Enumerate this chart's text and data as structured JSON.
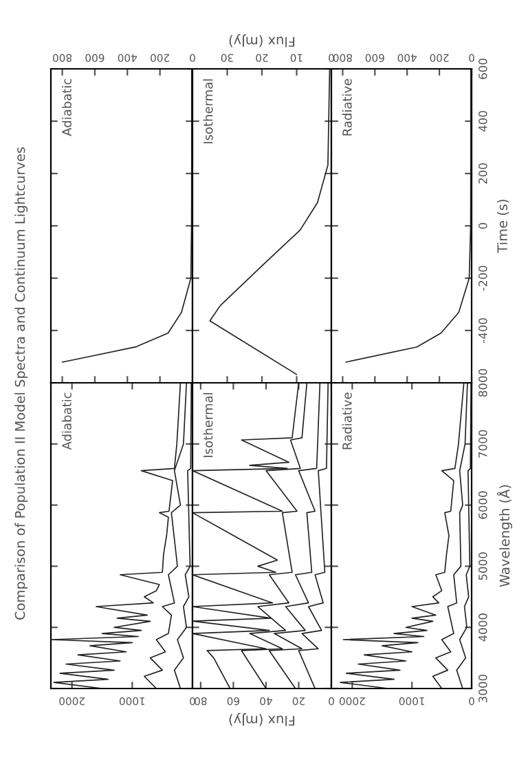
{
  "chart_data": [
    {
      "type": "line",
      "title": "Comparison of Population II Model Spectra and Continuum Lightcurves",
      "annotations": [
        "Adiabatic"
      ],
      "ylim": [
        -600,
        600
      ],
      "yticks": [
        -400,
        -200,
        0,
        200,
        400,
        600
      ],
      "xlim": [
        870,
        0
      ],
      "xticks": [
        0,
        200,
        400,
        600,
        800
      ],
      "tick_labels": "x",
      "grid": false,
      "legend": false,
      "series": [
        {
          "color": "#222222",
          "values": [
            -521,
            -463,
            -410,
            -331,
            -200,
            0,
            300,
            600
          ],
          "x": [
            800,
            350,
            150,
            68,
            10,
            6,
            5,
            5
          ]
        }
      ]
    },
    {
      "type": "line",
      "annotations": [
        "Isothermal"
      ],
      "xlabel": "Flux (mJy)",
      "ylim": [
        -600,
        600
      ],
      "yticks": [
        -400,
        -200,
        0,
        200,
        400,
        600
      ],
      "xlim": [
        40,
        0
      ],
      "xticks": [
        0,
        10,
        20,
        30
      ],
      "tick_labels": "x",
      "grid": false,
      "legend": false,
      "series": [
        {
          "color": "#222222",
          "values": [
            -568,
            -363,
            -305,
            -153,
            -16,
            89,
            232,
            600
          ],
          "x": [
            10,
            35,
            32,
            20,
            9,
            4,
            1,
            0.5
          ]
        }
      ]
    },
    {
      "type": "line",
      "annotations": [
        "Radiative"
      ],
      "ylabel": "Time (s)",
      "ylim": [
        -600,
        600
      ],
      "yticks": [
        -400,
        -200,
        0,
        200,
        400,
        600
      ],
      "xlim": [
        870,
        0
      ],
      "xticks": [
        0,
        200,
        400,
        600,
        800
      ],
      "grid": false,
      "legend": false,
      "series": [
        {
          "color": "#222222",
          "values": [
            -521,
            -463,
            -410,
            -331,
            -200,
            0,
            300,
            600
          ],
          "x": [
            780,
            340,
            190,
            80,
            15,
            6,
            5,
            5
          ]
        }
      ]
    },
    {
      "type": "line",
      "annotations": [
        "Adiabatic"
      ],
      "ylim": [
        3000,
        8000
      ],
      "yticks": [
        3000,
        4000,
        5000,
        6000,
        7000,
        8000
      ],
      "xlim": [
        2350,
        0
      ],
      "xticks": [
        0,
        1000,
        2000
      ],
      "tick_labels": "x",
      "grid": false,
      "legend": false,
      "series": [
        {
          "color": "#222222",
          "values": [
            3000,
            3100,
            3150,
            3250,
            3300,
            3400,
            3450,
            3550,
            3600,
            3700,
            3750,
            3800,
            3850,
            3900,
            3950,
            4000,
            4100,
            4150,
            4200,
            4340,
            4400,
            4500,
            4600,
            4700,
            4861,
            4900,
            5200,
            5500,
            5800,
            5876,
            5900,
            6400,
            6563,
            6600,
            7000,
            7500,
            8000
          ],
          "x": [
            1500,
            2300,
            1400,
            2200,
            1300,
            2100,
            1200,
            1900,
            1100,
            1700,
            1000,
            2350,
            900,
            1500,
            850,
            1300,
            700,
            1250,
            750,
            1600,
            650,
            800,
            600,
            550,
            1200,
            500,
            480,
            430,
            400,
            550,
            390,
            330,
            850,
            300,
            260,
            230,
            200
          ]
        },
        {
          "color": "#222222",
          "values": [
            3000,
            3200,
            3300,
            3500,
            3600,
            3800,
            3900,
            4200,
            4340,
            4400,
            4861,
            5000,
            5876,
            6000,
            6563,
            7000,
            8000
          ],
          "x": [
            600,
            800,
            500,
            700,
            450,
            600,
            400,
            350,
            500,
            300,
            400,
            250,
            350,
            200,
            300,
            150,
            100
          ]
        },
        {
          "color": "#222222",
          "values": [
            3000,
            3300,
            3500,
            3800,
            4000,
            4340,
            4500,
            4861,
            5000,
            6563,
            6600,
            8000
          ],
          "x": [
            200,
            300,
            150,
            250,
            100,
            150,
            60,
            120,
            40,
            80,
            30,
            20
          ]
        }
      ]
    },
    {
      "type": "line",
      "annotations": [
        "Isothermal"
      ],
      "xlabel": "Flux (mJy)",
      "ylim": [
        3000,
        8000
      ],
      "yticks": [
        3000,
        4000,
        5000,
        6000,
        7000,
        8000
      ],
      "xlim": [
        85,
        0
      ],
      "xticks": [
        0,
        20,
        40,
        60,
        80
      ],
      "tick_labels": "x",
      "grid": false,
      "legend": false,
      "series": [
        {
          "color": "#222222",
          "values": [
            3000,
            3500,
            3620,
            3650,
            3900,
            3950,
            4102,
            4150,
            4340,
            4400,
            4861,
            4900,
            5000,
            5100,
            5876,
            5900,
            6563,
            6600,
            6650,
            6700,
            7065,
            7100,
            8000
          ],
          "x": [
            62,
            72,
            76,
            40,
            85,
            38,
            85,
            37,
            85,
            36,
            85,
            34,
            45,
            33,
            85,
            30,
            85,
            27,
            50,
            26,
            55,
            24,
            20
          ]
        },
        {
          "color": "#222222",
          "values": [
            3000,
            3620,
            3650,
            3900,
            3950,
            4340,
            4400,
            4861,
            4900,
            5876,
            5900,
            6563,
            6600,
            7065,
            7100,
            8000
          ],
          "x": [
            40,
            55,
            30,
            50,
            28,
            45,
            26,
            38,
            24,
            30,
            21,
            40,
            19,
            25,
            18,
            15
          ]
        },
        {
          "color": "#222222",
          "values": [
            3000,
            3620,
            3650,
            3900,
            3950,
            4340,
            4400,
            4861,
            4900,
            5876,
            5900,
            6563,
            6600,
            8000
          ],
          "x": [
            22,
            38,
            18,
            35,
            16,
            28,
            14,
            22,
            12,
            15,
            10,
            20,
            9,
            7
          ]
        },
        {
          "color": "#222222",
          "values": [
            3000,
            3620,
            3650,
            3900,
            3950,
            4340,
            4400,
            4861,
            4900,
            6563,
            6600,
            8000
          ],
          "x": [
            10,
            20,
            8,
            18,
            6,
            14,
            5,
            10,
            4,
            8,
            3,
            2
          ]
        }
      ]
    },
    {
      "type": "line",
      "annotations": [
        "Radiative"
      ],
      "ylabel": "Wavelength (Å)",
      "ylim": [
        3000,
        8000
      ],
      "yticks": [
        3000,
        4000,
        5000,
        6000,
        7000,
        8000
      ],
      "xlim": [
        2350,
        0
      ],
      "xticks": [
        0,
        1000,
        2000
      ],
      "grid": false,
      "legend": false,
      "series": [
        {
          "color": "#222222",
          "values": [
            3000,
            3100,
            3150,
            3250,
            3300,
            3400,
            3450,
            3550,
            3600,
            3700,
            3750,
            3800,
            3850,
            3900,
            3950,
            4000,
            4100,
            4150,
            4200,
            4340,
            4400,
            4500,
            4600,
            4861,
            4900,
            5200,
            5500,
            5876,
            5900,
            6400,
            6563,
            6600,
            7000,
            8000
          ],
          "x": [
            1400,
            2200,
            1300,
            2100,
            1200,
            1900,
            1100,
            1800,
            1000,
            1500,
            900,
            2150,
            800,
            1300,
            750,
            1100,
            650,
            1000,
            600,
            1000,
            550,
            650,
            500,
            600,
            450,
            420,
            380,
            450,
            350,
            300,
            500,
            280,
            220,
            130
          ]
        },
        {
          "color": "#222222",
          "values": [
            3000,
            3200,
            3300,
            3500,
            3600,
            3800,
            3900,
            4340,
            4400,
            4861,
            5000,
            5876,
            6000,
            6563,
            7000,
            8000
          ],
          "x": [
            500,
            650,
            400,
            600,
            350,
            500,
            300,
            400,
            250,
            300,
            180,
            200,
            150,
            200,
            110,
            70
          ]
        },
        {
          "color": "#222222",
          "values": [
            3000,
            3300,
            3500,
            3800,
            4000,
            4340,
            4500,
            4861,
            5000,
            6563,
            6600,
            8000
          ],
          "x": [
            150,
            250,
            100,
            200,
            80,
            120,
            50,
            90,
            30,
            60,
            20,
            10
          ]
        }
      ]
    }
  ]
}
